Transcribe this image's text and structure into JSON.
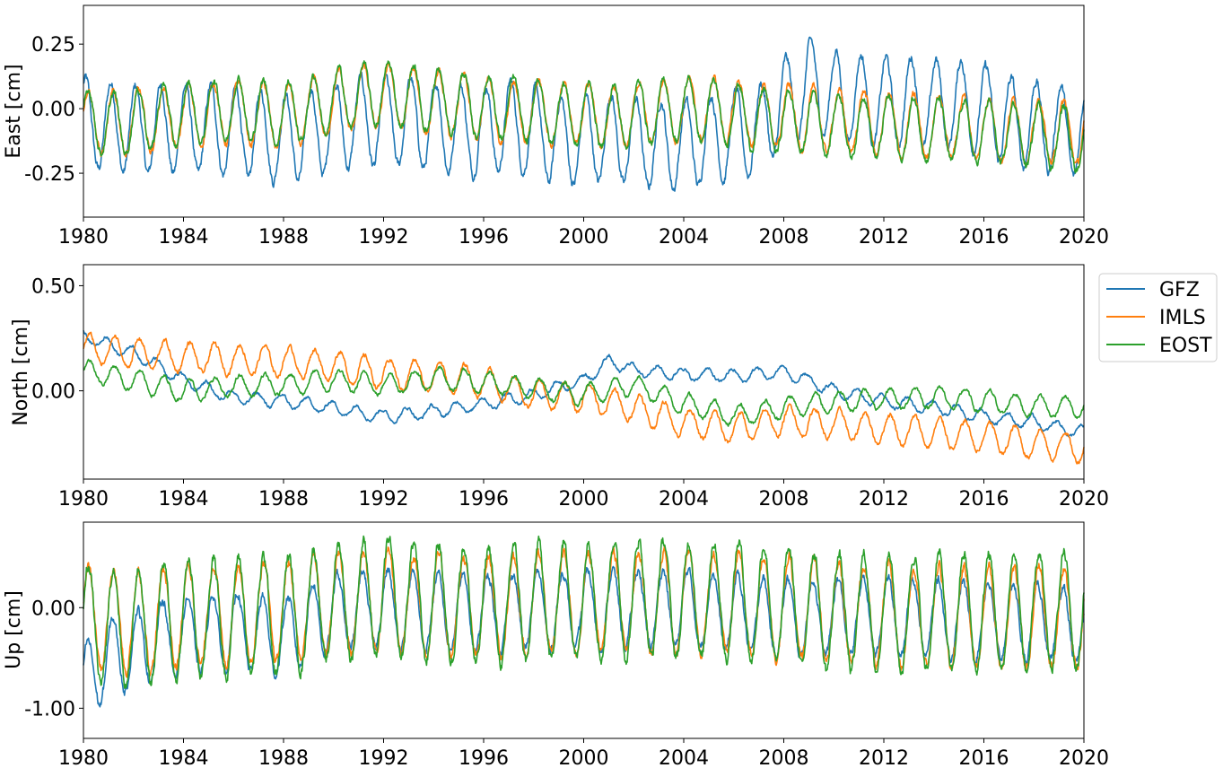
{
  "chart_data": {
    "type": "line",
    "figure": "GNSS station displacement time series (East / North / Up) from three loading models",
    "legend": {
      "placement": "right of middle panel, outside",
      "entries": [
        {
          "name": "GFZ",
          "color": "#1f77b4"
        },
        {
          "name": "IMLS",
          "color": "#ff7f0e"
        },
        {
          "name": "EOST",
          "color": "#2ca02c"
        }
      ]
    },
    "x_ticks": [
      1980,
      1984,
      1988,
      1992,
      1996,
      2000,
      2004,
      2008,
      2012,
      2016,
      2020
    ],
    "x_tick_labels": [
      "1980",
      "1984",
      "1988",
      "1992",
      "1996",
      "2000",
      "2004",
      "2008",
      "2012",
      "2016",
      "2020"
    ],
    "panels": [
      {
        "ylabel": "East [cm]",
        "xlim": [
          1980,
          2020
        ],
        "ylim": [
          -0.42,
          0.4
        ],
        "y_ticks": [
          0.25,
          0.0,
          -0.25
        ],
        "y_tick_labels": [
          "0.25",
          "0.00",
          "-0.25"
        ],
        "series": {
          "GFZ": {
            "x": [
              1980,
              1981,
              1982,
              1983,
              1984,
              1985,
              1986,
              1987,
              1988,
              1989,
              1990,
              1991,
              1992,
              1993,
              1994,
              1995,
              1996,
              1997,
              1998,
              1999,
              2000,
              2001,
              2002,
              2003,
              2004,
              2005,
              2006,
              2007,
              2008,
              2009,
              2010,
              2011,
              2012,
              2013,
              2014,
              2015,
              2016,
              2017,
              2018,
              2019,
              2020
            ],
            "trend": [
              -0.05,
              -0.07,
              -0.08,
              -0.08,
              -0.08,
              -0.08,
              -0.09,
              -0.1,
              -0.12,
              -0.1,
              -0.07,
              -0.05,
              -0.05,
              -0.05,
              -0.07,
              -0.08,
              -0.09,
              -0.06,
              -0.09,
              -0.13,
              -0.12,
              -0.11,
              -0.13,
              -0.14,
              -0.14,
              -0.12,
              -0.1,
              -0.08,
              0.02,
              0.1,
              0.05,
              0.04,
              0.03,
              0.03,
              0.02,
              0.02,
              0.0,
              -0.05,
              -0.06,
              -0.08,
              -0.1
            ],
            "amplitude": 0.17,
            "phase": 1.0
          },
          "IMLS": {
            "x": [
              1980,
              1981,
              1982,
              1983,
              1984,
              1985,
              1986,
              1987,
              1988,
              1989,
              1990,
              1991,
              1992,
              1993,
              1994,
              1995,
              1996,
              1997,
              1998,
              1999,
              2000,
              2001,
              2002,
              2003,
              2004,
              2005,
              2006,
              2007,
              2008,
              2009,
              2010,
              2011,
              2012,
              2013,
              2014,
              2015,
              2016,
              2017,
              2018,
              2019,
              2020
            ],
            "trend": [
              -0.04,
              -0.06,
              -0.05,
              -0.04,
              -0.03,
              -0.02,
              -0.01,
              -0.02,
              -0.03,
              -0.01,
              0.02,
              0.04,
              0.05,
              0.04,
              0.02,
              0.01,
              0.0,
              -0.01,
              -0.01,
              -0.02,
              -0.02,
              -0.03,
              -0.02,
              -0.01,
              0.0,
              0.0,
              -0.01,
              -0.03,
              -0.03,
              -0.04,
              -0.05,
              -0.05,
              -0.06,
              -0.07,
              -0.07,
              -0.07,
              -0.08,
              -0.08,
              -0.09,
              -0.09,
              -0.1
            ],
            "amplitude": 0.12,
            "phase": 0.3
          },
          "EOST": {
            "x": [
              1980,
              1981,
              1982,
              1983,
              1984,
              1985,
              1986,
              1987,
              1988,
              1989,
              1990,
              1991,
              1992,
              1993,
              1994,
              1995,
              1996,
              1997,
              1998,
              1999,
              2000,
              2001,
              2002,
              2003,
              2004,
              2005,
              2006,
              2007,
              2008,
              2009,
              2010,
              2011,
              2012,
              2013,
              2014,
              2015,
              2016,
              2017,
              2018,
              2019,
              2020
            ],
            "trend": [
              -0.04,
              -0.06,
              -0.05,
              -0.03,
              -0.02,
              -0.01,
              0.0,
              -0.01,
              -0.02,
              0.0,
              0.03,
              0.05,
              0.06,
              0.05,
              0.03,
              0.02,
              0.01,
              0.0,
              -0.01,
              -0.02,
              -0.02,
              -0.03,
              -0.02,
              -0.01,
              0.0,
              -0.01,
              -0.02,
              -0.04,
              -0.05,
              -0.05,
              -0.06,
              -0.07,
              -0.07,
              -0.08,
              -0.08,
              -0.09,
              -0.09,
              -0.1,
              -0.1,
              -0.11,
              -0.12
            ],
            "amplitude": 0.12,
            "phase": 0.3
          }
        }
      },
      {
        "ylabel": "North [cm]",
        "xlim": [
          1980,
          2020
        ],
        "ylim": [
          -0.42,
          0.6
        ],
        "y_ticks": [
          0.5,
          0.0
        ],
        "y_tick_labels": [
          "0.50",
          "0.00"
        ],
        "series": {
          "GFZ": {
            "x": [
              1980,
              1982,
              1984,
              1986,
              1988,
              1990,
              1992,
              1994,
              1996,
              1998,
              2000,
              2001,
              2002,
              2004,
              2006,
              2008,
              2010,
              2012,
              2014,
              2016,
              2018,
              2020
            ],
            "trend": [
              0.26,
              0.18,
              0.05,
              -0.03,
              -0.05,
              -0.08,
              -0.12,
              -0.1,
              -0.06,
              -0.02,
              0.05,
              0.14,
              0.1,
              0.08,
              0.07,
              0.09,
              0.0,
              -0.05,
              -0.08,
              -0.12,
              -0.15,
              -0.2
            ],
            "amplitude": 0.03,
            "phase": 2.0
          },
          "IMLS": {
            "x": [
              1980,
              1982,
              1984,
              1986,
              1988,
              1990,
              1992,
              1994,
              1996,
              1998,
              2000,
              2002,
              2004,
              2006,
              2008,
              2010,
              2012,
              2014,
              2016,
              2018,
              2020
            ],
            "trend": [
              0.2,
              0.18,
              0.16,
              0.15,
              0.14,
              0.12,
              0.08,
              0.07,
              0.04,
              -0.02,
              -0.03,
              -0.08,
              -0.15,
              -0.18,
              -0.14,
              -0.16,
              -0.18,
              -0.2,
              -0.22,
              -0.25,
              -0.27
            ],
            "amplitude": 0.07,
            "phase": 0.0
          },
          "EOST": {
            "x": [
              1980,
              1982,
              1984,
              1986,
              1988,
              1990,
              1992,
              1994,
              1996,
              1998,
              2000,
              2002,
              2004,
              2006,
              2008,
              2010,
              2012,
              2014,
              2016,
              2018,
              2020
            ],
            "trend": [
              0.1,
              0.05,
              0.0,
              0.02,
              0.03,
              0.05,
              0.03,
              0.06,
              0.04,
              0.01,
              -0.02,
              0.03,
              -0.06,
              -0.12,
              -0.08,
              -0.05,
              -0.04,
              -0.03,
              -0.05,
              -0.07,
              -0.08
            ],
            "amplitude": 0.05,
            "phase": 0.0
          }
        }
      },
      {
        "ylabel": "Up [cm]",
        "xlim": [
          1980,
          2020
        ],
        "ylim": [
          -1.3,
          0.85
        ],
        "y_ticks": [
          0.0,
          -1.0
        ],
        "y_tick_labels": [
          "0.00",
          "-1.00"
        ],
        "series": {
          "GFZ": {
            "x": [
              1980,
              1981,
              1982,
              1983,
              1984,
              1986,
              1988,
              1989,
              1990,
              1992,
              1994,
              1996,
              1998,
              2000,
              2002,
              2004,
              2006,
              2008,
              2010,
              2012,
              2014,
              2016,
              2018,
              2020
            ],
            "trend": [
              -0.75,
              -0.5,
              -0.42,
              -0.3,
              -0.28,
              -0.22,
              -0.3,
              -0.15,
              -0.05,
              0.0,
              -0.05,
              -0.05,
              -0.02,
              -0.02,
              0.0,
              0.0,
              -0.05,
              -0.1,
              -0.1,
              -0.08,
              -0.1,
              -0.12,
              -0.15,
              -0.2
            ],
            "amplitude": 0.38,
            "phase": 0.5
          },
          "IMLS": {
            "x": [
              1980,
              1982,
              1984,
              1986,
              1988,
              1990,
              1992,
              1994,
              1996,
              1998,
              2000,
              2002,
              2004,
              2006,
              2008,
              2010,
              2012,
              2014,
              2016,
              2018,
              2020
            ],
            "trend": [
              -0.1,
              -0.15,
              -0.08,
              -0.05,
              -0.05,
              0.05,
              0.08,
              0.02,
              0.0,
              0.03,
              0.05,
              0.08,
              0.05,
              0.05,
              0.0,
              -0.05,
              -0.08,
              -0.08,
              -0.1,
              -0.1,
              -0.1
            ],
            "amplitude": 0.5,
            "phase": 0.3
          },
          "EOST": {
            "x": [
              1980,
              1982,
              1984,
              1986,
              1988,
              1990,
              1992,
              1994,
              1996,
              1998,
              2000,
              2002,
              2004,
              2006,
              2008,
              2010,
              2012,
              2014,
              2016,
              2018,
              2020
            ],
            "trend": [
              -0.15,
              -0.2,
              -0.12,
              -0.08,
              -0.08,
              0.05,
              0.1,
              0.05,
              0.02,
              0.05,
              0.08,
              0.1,
              0.08,
              0.08,
              0.02,
              -0.05,
              -0.05,
              -0.05,
              -0.05,
              -0.05,
              -0.02
            ],
            "amplitude": 0.58,
            "phase": 0.3
          }
        }
      }
    ]
  }
}
